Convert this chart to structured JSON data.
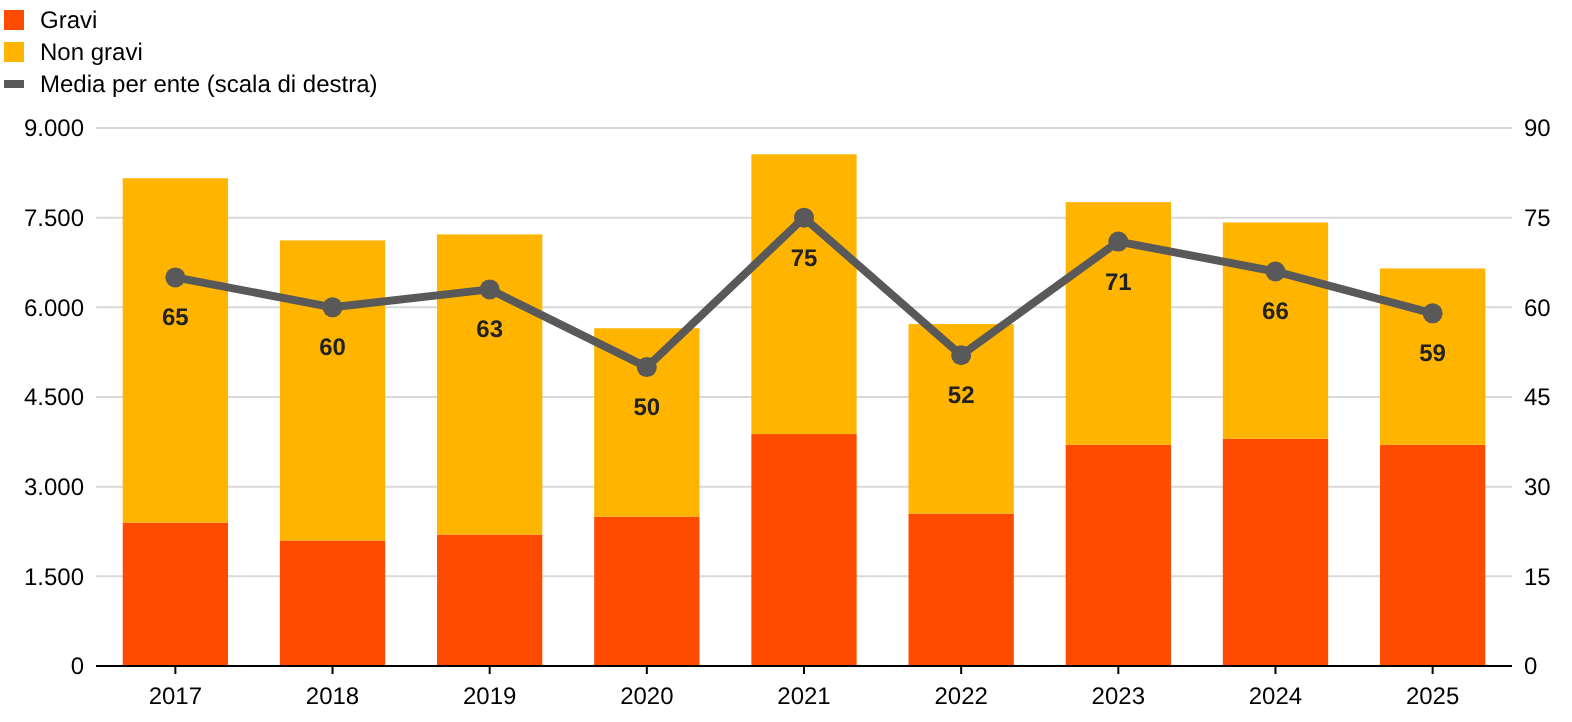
{
  "chart_data": {
    "type": "bar",
    "stacked": true,
    "categories": [
      "2017",
      "2018",
      "2019",
      "2020",
      "2021",
      "2022",
      "2023",
      "2024",
      "2025"
    ],
    "series": [
      {
        "name": "Gravi",
        "color": "#ff4b00",
        "values": [
          2400,
          2100,
          2200,
          2500,
          3880,
          2550,
          3700,
          3800,
          3700
        ]
      },
      {
        "name": "Non gravi",
        "color": "#ffb400",
        "values": [
          5760,
          5020,
          5020,
          3150,
          4680,
          3170,
          4060,
          3620,
          2950
        ]
      },
      {
        "name": "Media per ente (scala di destra)",
        "type": "line",
        "axis": "y2",
        "color": "#595959",
        "marker": "circle",
        "values": [
          65,
          60,
          63,
          50,
          75,
          52,
          71,
          66,
          59
        ],
        "value_labels": [
          "65",
          "60",
          "63",
          "50",
          "75",
          "52",
          "71",
          "66",
          "59"
        ]
      }
    ],
    "ylim": [
      0,
      9000
    ],
    "yticks": [
      0,
      {
        "value": 1500,
        "label": "1.500"
      },
      {
        "value": 3000,
        "label": "3.000"
      },
      {
        "value": 4500,
        "label": "4.500"
      },
      {
        "value": 6000,
        "label": "6.000"
      },
      {
        "value": 7500,
        "label": "7.500"
      },
      {
        "value": 9000,
        "label": "9.000"
      }
    ],
    "y2lim": [
      0,
      90
    ],
    "y2ticks": [
      0,
      15,
      30,
      45,
      60,
      75,
      90
    ],
    "grid": "y",
    "legend": "top left"
  }
}
